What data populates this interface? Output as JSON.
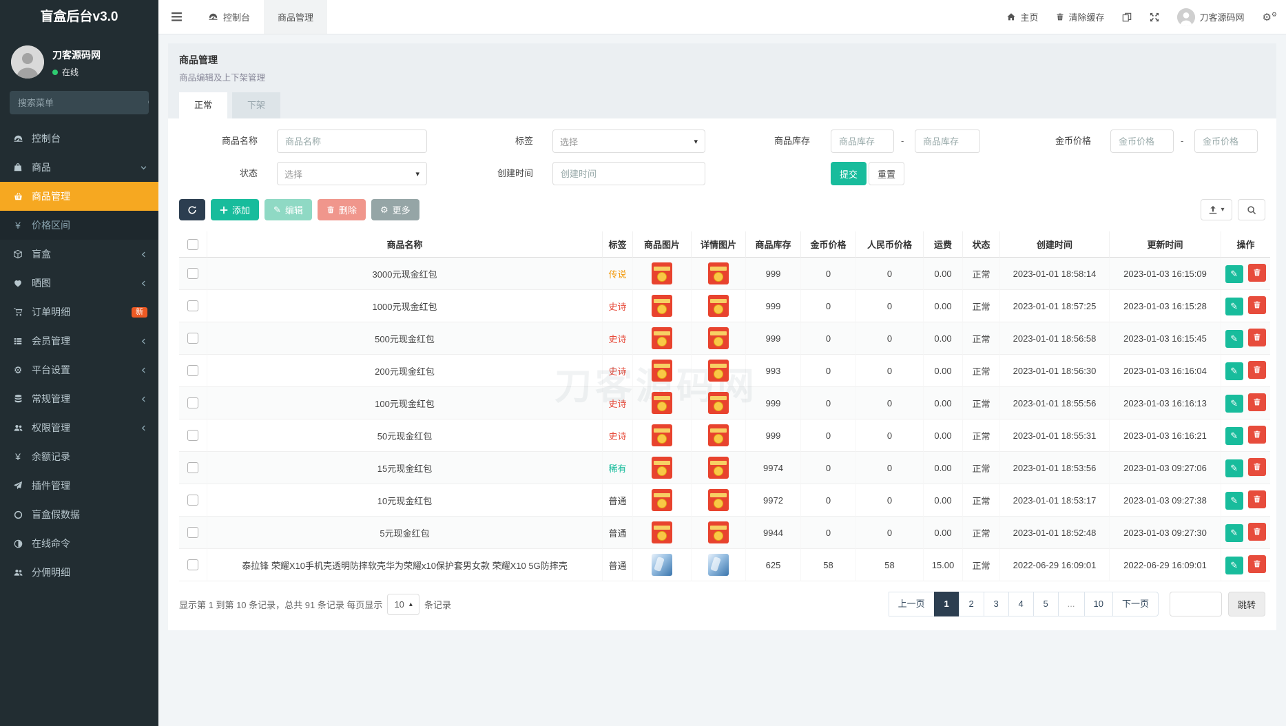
{
  "app": {
    "title": "盲盒后台v3.0"
  },
  "colors": {
    "sidebar_bg": "#222d32",
    "accent_orange": "#f6a821",
    "primary_dark": "#2c3e50",
    "success_green": "#18bc9c",
    "danger_red": "#e74c3c",
    "warning_orange": "#f39c12",
    "new_badge": "#ee5a24"
  },
  "icons": {
    "yen-icon": "¥",
    "circle-o-icon": "○",
    "adjust-icon": "◑",
    "gear-icon": "⚙",
    "gears-icon": "⚙⚙",
    "pencil-icon": "✎",
    "caret-down-icon": "▾",
    "caret-up-icon": "▴",
    "chevron-left-icon": "svg",
    "chevron-down-icon": "svg",
    "dashboard-icon": "svg",
    "shopping-bag-icon": "svg",
    "basket-icon": "svg",
    "cube-icon": "svg",
    "gallery-icon": "svg",
    "cart-icon": "svg",
    "list-icon": "svg",
    "database-icon": "svg",
    "users-icon": "svg",
    "rocket-icon": "svg",
    "home-icon": "svg",
    "trash-icon": "svg",
    "copy-icon": "svg",
    "fullscreen-icon": "svg",
    "person-icon": "svg",
    "search-icon": "svg",
    "refresh-icon": "svg",
    "plus-icon": "svg",
    "export-icon": "svg",
    "hamburger-icon": "svg"
  },
  "sidebar": {
    "user": {
      "name": "刀客源码网",
      "status": "在线"
    },
    "search_placeholder": "搜索菜单",
    "menu": [
      {
        "icon": "dashboard-icon",
        "label": "控制台",
        "cls": "",
        "chevron": "",
        "badge": ""
      },
      {
        "icon": "shopping-bag-icon",
        "label": "商品",
        "cls": "",
        "chevron": "chevron-down-icon",
        "badge": ""
      },
      {
        "icon": "basket-icon",
        "label": "商品管理",
        "cls": "active",
        "chevron": "",
        "badge": ""
      },
      {
        "icon": "yen-icon",
        "label": "价格区间",
        "cls": "submenu",
        "chevron": "",
        "badge": ""
      },
      {
        "icon": "cube-icon",
        "label": "盲盒",
        "cls": "",
        "chevron": "chevron-left-icon",
        "badge": ""
      },
      {
        "icon": "gallery-icon",
        "label": "晒图",
        "cls": "",
        "chevron": "chevron-left-icon",
        "badge": ""
      },
      {
        "icon": "cart-icon",
        "label": "订单明细",
        "cls": "",
        "chevron": "",
        "badge": "新"
      },
      {
        "icon": "list-icon",
        "label": "会员管理",
        "cls": "",
        "chevron": "chevron-left-icon",
        "badge": ""
      },
      {
        "icon": "gear-icon",
        "label": "平台设置",
        "cls": "",
        "chevron": "chevron-left-icon",
        "badge": ""
      },
      {
        "icon": "database-icon",
        "label": "常规管理",
        "cls": "",
        "chevron": "chevron-left-icon",
        "badge": ""
      },
      {
        "icon": "users-icon",
        "label": "权限管理",
        "cls": "",
        "chevron": "chevron-left-icon",
        "badge": ""
      },
      {
        "icon": "yen-icon",
        "label": "余额记录",
        "cls": "",
        "chevron": "",
        "badge": ""
      },
      {
        "icon": "rocket-icon",
        "label": "插件管理",
        "cls": "",
        "chevron": "",
        "badge": ""
      },
      {
        "icon": "circle-o-icon",
        "label": "盲盒假数据",
        "cls": "",
        "chevron": "",
        "badge": ""
      },
      {
        "icon": "adjust-icon",
        "label": "在线命令",
        "cls": "",
        "chevron": "",
        "badge": ""
      },
      {
        "icon": "users-icon",
        "label": "分佣明细",
        "cls": "",
        "chevron": "",
        "badge": ""
      }
    ]
  },
  "navbar": {
    "tabs": [
      {
        "icon": "dashboard-icon",
        "label": "控制台",
        "cls": ""
      },
      {
        "icon": "",
        "label": "商品管理",
        "cls": "active"
      }
    ],
    "home_label": "主页",
    "clear_cache_label": "清除缓存",
    "username": "刀客源码网"
  },
  "page": {
    "title": "商品管理",
    "subtitle": "商品编辑及上下架管理",
    "tabs": [
      {
        "label": "正常",
        "cls": "active"
      },
      {
        "label": "下架",
        "cls": ""
      }
    ]
  },
  "filters": {
    "name_label": "商品名称",
    "name_placeholder": "商品名称",
    "tag_label": "标签",
    "tag_value": "选择",
    "stock_label": "商品库存",
    "stock_min_placeholder": "商品库存",
    "stock_max_placeholder": "商品库存",
    "gold_label": "金币价格",
    "gold_min_placeholder": "金币价格",
    "gold_max_placeholder": "金币价格",
    "status_label": "状态",
    "status_value": "选择",
    "created_label": "创建时间",
    "created_placeholder": "创建时间",
    "range_separator": "-",
    "submit_label": "提交",
    "reset_label": "重置"
  },
  "toolbar": {
    "add_label": "添加",
    "edit_label": "编辑",
    "delete_label": "删除",
    "more_label": "更多"
  },
  "table": {
    "watermark": "刀客源码网",
    "columns": [
      "商品名称",
      "标签",
      "商品图片",
      "详情图片",
      "商品库存",
      "金币价格",
      "人民币价格",
      "运费",
      "状态",
      "创建时间",
      "更新时间",
      "操作"
    ],
    "rows": [
      {
        "name": "3000元现金红包",
        "tag": "传说",
        "tag_color": "#f39c12",
        "product_image": "red-envelope",
        "detail_image": "red-envelope",
        "stock": "999",
        "gold": "0",
        "rmb": "0",
        "freight": "0.00",
        "status": "正常",
        "created": "2023-01-01 18:58:14",
        "updated": "2023-01-03 16:15:09"
      },
      {
        "name": "1000元现金红包",
        "tag": "史诗",
        "tag_color": "#e74c3c",
        "product_image": "red-envelope",
        "detail_image": "red-envelope",
        "stock": "999",
        "gold": "0",
        "rmb": "0",
        "freight": "0.00",
        "status": "正常",
        "created": "2023-01-01 18:57:25",
        "updated": "2023-01-03 16:15:28"
      },
      {
        "name": "500元现金红包",
        "tag": "史诗",
        "tag_color": "#e74c3c",
        "product_image": "red-envelope",
        "detail_image": "red-envelope",
        "stock": "999",
        "gold": "0",
        "rmb": "0",
        "freight": "0.00",
        "status": "正常",
        "created": "2023-01-01 18:56:58",
        "updated": "2023-01-03 16:15:45"
      },
      {
        "name": "200元现金红包",
        "tag": "史诗",
        "tag_color": "#e74c3c",
        "product_image": "red-envelope",
        "detail_image": "red-envelope",
        "stock": "993",
        "gold": "0",
        "rmb": "0",
        "freight": "0.00",
        "status": "正常",
        "created": "2023-01-01 18:56:30",
        "updated": "2023-01-03 16:16:04"
      },
      {
        "name": "100元现金红包",
        "tag": "史诗",
        "tag_color": "#e74c3c",
        "product_image": "red-envelope",
        "detail_image": "red-envelope",
        "stock": "999",
        "gold": "0",
        "rmb": "0",
        "freight": "0.00",
        "status": "正常",
        "created": "2023-01-01 18:55:56",
        "updated": "2023-01-03 16:16:13"
      },
      {
        "name": "50元现金红包",
        "tag": "史诗",
        "tag_color": "#e74c3c",
        "product_image": "red-envelope",
        "detail_image": "red-envelope",
        "stock": "999",
        "gold": "0",
        "rmb": "0",
        "freight": "0.00",
        "status": "正常",
        "created": "2023-01-01 18:55:31",
        "updated": "2023-01-03 16:16:21"
      },
      {
        "name": "15元现金红包",
        "tag": "稀有",
        "tag_color": "#18bc9c",
        "product_image": "red-envelope",
        "detail_image": "red-envelope",
        "stock": "9974",
        "gold": "0",
        "rmb": "0",
        "freight": "0.00",
        "status": "正常",
        "created": "2023-01-01 18:53:56",
        "updated": "2023-01-03 09:27:06"
      },
      {
        "name": "10元现金红包",
        "tag": "普通",
        "tag_color": "#444444",
        "product_image": "red-envelope",
        "detail_image": "red-envelope",
        "stock": "9972",
        "gold": "0",
        "rmb": "0",
        "freight": "0.00",
        "status": "正常",
        "created": "2023-01-01 18:53:17",
        "updated": "2023-01-03 09:27:38"
      },
      {
        "name": "5元现金红包",
        "tag": "普通",
        "tag_color": "#444444",
        "product_image": "red-envelope",
        "detail_image": "red-envelope",
        "stock": "9944",
        "gold": "0",
        "rmb": "0",
        "freight": "0.00",
        "status": "正常",
        "created": "2023-01-01 18:52:48",
        "updated": "2023-01-03 09:27:30"
      },
      {
        "name": "泰拉锋 荣耀X10手机壳透明防摔软壳华为荣耀x10保护套男女款 荣耀X10 5G防摔壳",
        "tag": "普通",
        "tag_color": "#444444",
        "product_image": "phone-case",
        "detail_image": "phone-case",
        "stock": "625",
        "gold": "58",
        "rmb": "58",
        "freight": "15.00",
        "status": "正常",
        "created": "2022-06-29 16:09:01",
        "updated": "2022-06-29 16:09:01"
      }
    ]
  },
  "pagination": {
    "summary_prefix": "显示第 1 到第 10 条记录，总共 91 条记录 每页显示",
    "page_size": "10",
    "summary_suffix": "条记录",
    "pages": [
      {
        "label": "上一页",
        "cls": ""
      },
      {
        "label": "1",
        "cls": "active"
      },
      {
        "label": "2",
        "cls": ""
      },
      {
        "label": "3",
        "cls": ""
      },
      {
        "label": "4",
        "cls": ""
      },
      {
        "label": "5",
        "cls": ""
      },
      {
        "label": "...",
        "cls": "ellipsis"
      },
      {
        "label": "10",
        "cls": ""
      },
      {
        "label": "下一页",
        "cls": ""
      }
    ],
    "jump_label": "跳转"
  }
}
